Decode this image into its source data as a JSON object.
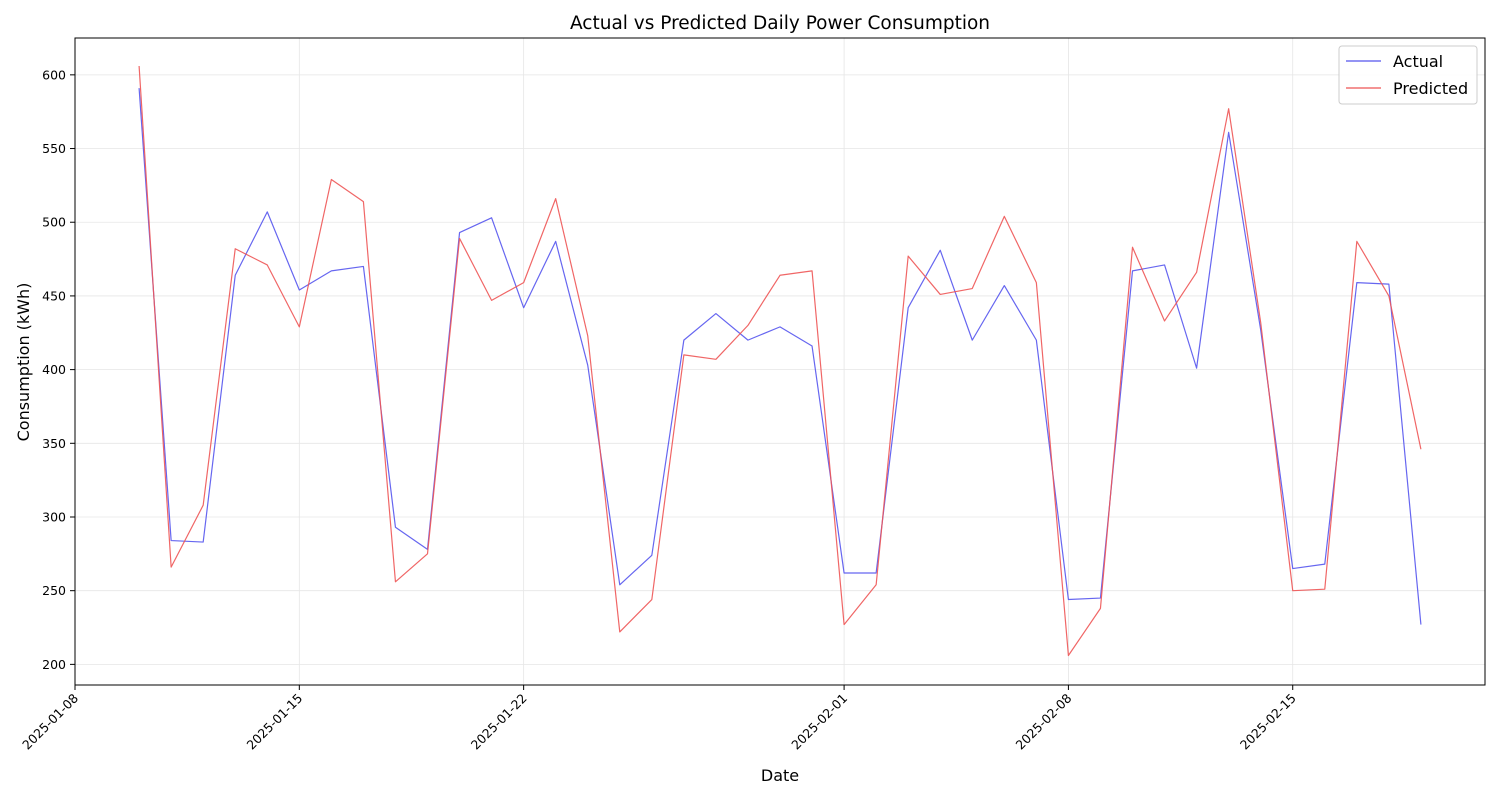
{
  "chart_data": {
    "type": "line",
    "title": "Actual vs Predicted Daily Power Consumption",
    "xlabel": "Date",
    "ylabel": "Consumption (kWh)",
    "x_start": "2025-01-10",
    "x": [
      "2025-01-10",
      "2025-01-11",
      "2025-01-12",
      "2025-01-13",
      "2025-01-14",
      "2025-01-15",
      "2025-01-16",
      "2025-01-17",
      "2025-01-18",
      "2025-01-19",
      "2025-01-20",
      "2025-01-21",
      "2025-01-22",
      "2025-01-23",
      "2025-01-24",
      "2025-01-25",
      "2025-01-26",
      "2025-01-27",
      "2025-01-28",
      "2025-01-29",
      "2025-01-30",
      "2025-01-31",
      "2025-02-01",
      "2025-02-02",
      "2025-02-03",
      "2025-02-04",
      "2025-02-05",
      "2025-02-06",
      "2025-02-07",
      "2025-02-08",
      "2025-02-09",
      "2025-02-10",
      "2025-02-11",
      "2025-02-12",
      "2025-02-13",
      "2025-02-14",
      "2025-02-15",
      "2025-02-16",
      "2025-02-17",
      "2025-02-18",
      "2025-02-19"
    ],
    "series": [
      {
        "name": "Actual",
        "color": "#5555ee",
        "values": [
          591,
          284,
          283,
          464,
          507,
          454,
          467,
          470,
          293,
          278,
          493,
          503,
          442,
          487,
          403,
          254,
          274,
          420,
          438,
          420,
          429,
          416,
          262,
          262,
          442,
          481,
          420,
          457,
          420,
          244,
          245,
          467,
          471,
          401,
          561,
          427,
          265,
          268,
          459,
          458,
          227
        ]
      },
      {
        "name": "Predicted",
        "color": "#ee5555",
        "values": [
          606,
          266,
          308,
          482,
          471,
          429,
          529,
          514,
          256,
          275,
          489,
          447,
          459,
          516,
          423,
          222,
          244,
          410,
          407,
          430,
          464,
          467,
          227,
          254,
          477,
          451,
          455,
          504,
          459,
          206,
          238,
          483,
          433,
          466,
          577,
          432,
          250,
          251,
          487,
          450,
          346
        ]
      }
    ],
    "xticks": [
      "2025-01-08",
      "2025-01-15",
      "2025-01-22",
      "2025-02-01",
      "2025-02-08",
      "2025-02-15"
    ],
    "yticks": [
      200,
      250,
      300,
      350,
      400,
      450,
      500,
      550,
      600
    ],
    "ylim": [
      186,
      625
    ],
    "xlim": [
      "2025-01-08",
      "2025-02-21"
    ],
    "grid": true,
    "legend": "top-right"
  }
}
